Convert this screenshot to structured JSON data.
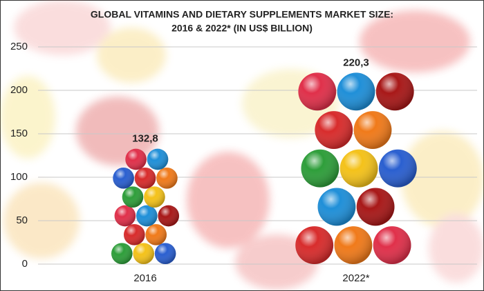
{
  "chart_data": {
    "type": "bar",
    "title": [
      "GLOBAL VITAMINS AND DIETARY SUPPLEMENTS MARKET SIZE:",
      "2016 & 2022* (IN US$ BILLION)"
    ],
    "categories": [
      "2016",
      "2022*"
    ],
    "values": [
      132.8,
      220.3
    ],
    "value_labels": [
      "132,8",
      "220,3"
    ],
    "ylim": [
      0,
      250
    ],
    "yticks": [
      0,
      50,
      100,
      150,
      200,
      250
    ],
    "grid": true
  }
}
